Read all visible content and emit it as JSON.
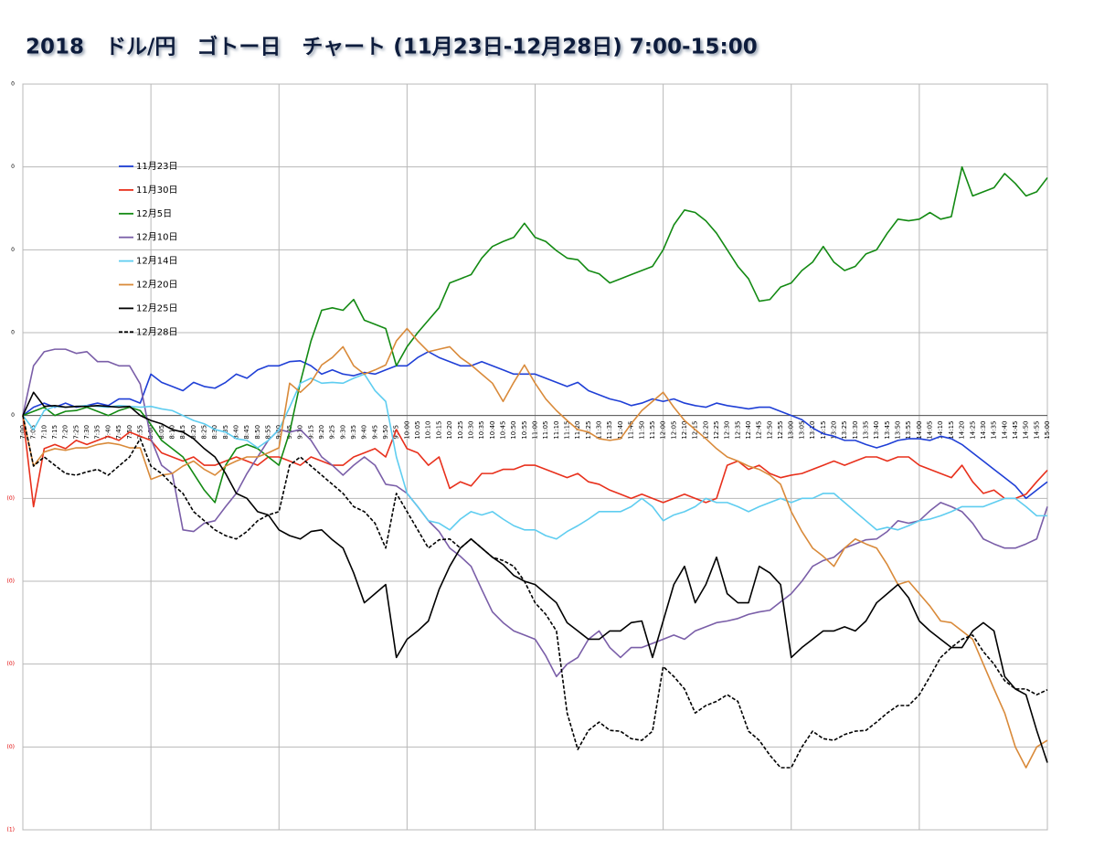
{
  "chart_data": {
    "type": "line",
    "title": "2018　ドル/円　ゴトー日　チャート (11月23日-12月28日) 7:00-15:00",
    "categories": [
      "7:00",
      "7:05",
      "7:10",
      "7:15",
      "7:20",
      "7:25",
      "7:30",
      "7:35",
      "7:40",
      "7:45",
      "7:50",
      "7:55",
      "8:00",
      "8:05",
      "8:10",
      "8:15",
      "8:20",
      "8:25",
      "8:30",
      "8:35",
      "8:40",
      "8:45",
      "8:50",
      "8:55",
      "9:00",
      "9:05",
      "9:10",
      "9:15",
      "9:20",
      "9:25",
      "9:30",
      "9:35",
      "9:40",
      "9:45",
      "9:50",
      "9:55",
      "10:00",
      "10:05",
      "10:10",
      "10:15",
      "10:20",
      "10:25",
      "10:30",
      "10:35",
      "10:40",
      "10:45",
      "10:50",
      "10:55",
      "11:00",
      "11:05",
      "11:10",
      "11:15",
      "11:20",
      "11:25",
      "11:30",
      "11:35",
      "11:40",
      "11:45",
      "11:50",
      "11:55",
      "12:00",
      "12:05",
      "12:10",
      "12:15",
      "12:20",
      "12:25",
      "12:30",
      "12:35",
      "12:40",
      "12:45",
      "12:50",
      "12:55",
      "13:00",
      "13:05",
      "13:10",
      "13:15",
      "13:20",
      "13:25",
      "13:30",
      "13:35",
      "13:40",
      "13:45",
      "13:50",
      "13:55",
      "14:00",
      "14:05",
      "14:10",
      "14:15",
      "14:20",
      "14:25",
      "14:30",
      "14:35",
      "14:40",
      "14:45",
      "14:50",
      "14:55",
      "15:00"
    ],
    "series": [
      {
        "name": "11月23日",
        "color": "#1f3fd6",
        "dash": false,
        "values": [
          0,
          0.01,
          0.015,
          0.01,
          0.015,
          0.01,
          0.012,
          0.015,
          0.012,
          0.02,
          0.02,
          0.015,
          0.05,
          0.04,
          0.035,
          0.03,
          0.04,
          0.035,
          0.033,
          0.04,
          0.05,
          0.045,
          0.055,
          0.06,
          0.06,
          0.065,
          0.066,
          0.06,
          0.05,
          0.055,
          0.05,
          0.048,
          0.052,
          0.05,
          0.055,
          0.06,
          0.06,
          0.07,
          0.077,
          0.07,
          0.065,
          0.06,
          0.06,
          0.065,
          0.06,
          0.055,
          0.05,
          0.05,
          0.05,
          0.045,
          0.04,
          0.035,
          0.04,
          0.03,
          0.025,
          0.02,
          0.017,
          0.012,
          0.015,
          0.02,
          0.017,
          0.02,
          0.015,
          0.012,
          0.01,
          0.015,
          0.012,
          0.01,
          0.008,
          0.01,
          0.01,
          0.005,
          0,
          -0.005,
          -0.015,
          -0.022,
          -0.025,
          -0.03,
          -0.03,
          -0.035,
          -0.039,
          -0.035,
          -0.03,
          -0.028,
          -0.028,
          -0.03,
          -0.025,
          -0.028,
          -0.035,
          -0.045,
          -0.055,
          -0.065,
          -0.075,
          -0.085,
          -0.1,
          -0.09,
          -0.08
        ]
      },
      {
        "name": "11月30日",
        "color": "#e8301c",
        "dash": false,
        "values": [
          0,
          -0.11,
          -0.04,
          -0.035,
          -0.04,
          -0.03,
          -0.035,
          -0.03,
          -0.025,
          -0.03,
          -0.02,
          -0.025,
          -0.03,
          -0.045,
          -0.05,
          -0.055,
          -0.05,
          -0.06,
          -0.06,
          -0.055,
          -0.05,
          -0.055,
          -0.06,
          -0.05,
          -0.05,
          -0.055,
          -0.06,
          -0.05,
          -0.055,
          -0.06,
          -0.06,
          -0.05,
          -0.045,
          -0.04,
          -0.05,
          -0.017,
          -0.04,
          -0.045,
          -0.06,
          -0.05,
          -0.088,
          -0.08,
          -0.085,
          -0.07,
          -0.07,
          -0.065,
          -0.065,
          -0.06,
          -0.06,
          -0.065,
          -0.07,
          -0.075,
          -0.07,
          -0.08,
          -0.083,
          -0.09,
          -0.095,
          -0.1,
          -0.095,
          -0.1,
          -0.105,
          -0.1,
          -0.095,
          -0.1,
          -0.105,
          -0.1,
          -0.06,
          -0.055,
          -0.065,
          -0.06,
          -0.07,
          -0.075,
          -0.072,
          -0.07,
          -0.065,
          -0.06,
          -0.055,
          -0.06,
          -0.055,
          -0.05,
          -0.05,
          -0.055,
          -0.05,
          -0.05,
          -0.06,
          -0.065,
          -0.07,
          -0.075,
          -0.06,
          -0.08,
          -0.094,
          -0.09,
          -0.1,
          -0.1,
          -0.095,
          -0.08,
          -0.066
        ]
      },
      {
        "name": "12月5日",
        "color": "#138a13",
        "dash": false,
        "values": [
          0,
          0.005,
          0.01,
          0,
          0.005,
          0.006,
          0.01,
          0.005,
          0,
          0.006,
          0.01,
          0.006,
          -0.011,
          -0.03,
          -0.04,
          -0.05,
          -0.07,
          -0.09,
          -0.105,
          -0.06,
          -0.04,
          -0.035,
          -0.04,
          -0.05,
          -0.06,
          -0.02,
          0.04,
          0.09,
          0.127,
          0.13,
          0.127,
          0.14,
          0.115,
          0.11,
          0.105,
          0.06,
          0.083,
          0.1,
          0.115,
          0.13,
          0.16,
          0.165,
          0.17,
          0.19,
          0.204,
          0.21,
          0.215,
          0.232,
          0.215,
          0.21,
          0.199,
          0.19,
          0.188,
          0.175,
          0.171,
          0.16,
          0.165,
          0.17,
          0.175,
          0.18,
          0.2,
          0.23,
          0.248,
          0.245,
          0.235,
          0.22,
          0.2,
          0.18,
          0.165,
          0.138,
          0.14,
          0.155,
          0.16,
          0.175,
          0.185,
          0.204,
          0.185,
          0.175,
          0.18,
          0.195,
          0.2,
          0.22,
          0.237,
          0.235,
          0.237,
          0.245,
          0.237,
          0.24,
          0.3,
          0.265,
          0.27,
          0.275,
          0.292,
          0.28,
          0.265,
          0.27,
          0.287
        ]
      },
      {
        "name": "12月10日",
        "color": "#7a5ea8",
        "dash": false,
        "values": [
          0,
          0.06,
          0.077,
          0.08,
          0.08,
          0.075,
          0.077,
          0.065,
          0.065,
          0.06,
          0.06,
          0.038,
          -0.028,
          -0.06,
          -0.07,
          -0.138,
          -0.14,
          -0.13,
          -0.127,
          -0.11,
          -0.094,
          -0.07,
          -0.05,
          -0.03,
          -0.017,
          -0.02,
          -0.017,
          -0.03,
          -0.05,
          -0.06,
          -0.072,
          -0.06,
          -0.05,
          -0.06,
          -0.083,
          -0.085,
          -0.094,
          -0.11,
          -0.127,
          -0.14,
          -0.16,
          -0.17,
          -0.182,
          -0.21,
          -0.237,
          -0.25,
          -0.26,
          -0.265,
          -0.27,
          -0.29,
          -0.315,
          -0.3,
          -0.292,
          -0.27,
          -0.26,
          -0.28,
          -0.292,
          -0.28,
          -0.28,
          -0.275,
          -0.27,
          -0.265,
          -0.27,
          -0.26,
          -0.255,
          -0.25,
          -0.248,
          -0.245,
          -0.24,
          -0.237,
          -0.235,
          -0.225,
          -0.215,
          -0.2,
          -0.182,
          -0.175,
          -0.171,
          -0.16,
          -0.155,
          -0.15,
          -0.149,
          -0.14,
          -0.127,
          -0.13,
          -0.127,
          -0.115,
          -0.105,
          -0.11,
          -0.116,
          -0.13,
          -0.149,
          -0.155,
          -0.16,
          -0.16,
          -0.155,
          -0.149,
          -0.11
        ]
      },
      {
        "name": "12月14日",
        "color": "#5fcdf0",
        "dash": false,
        "values": [
          0,
          -0.017,
          0.006,
          0.011,
          0.01,
          0.011,
          0.012,
          0.011,
          0.01,
          0.012,
          0.011,
          0.01,
          0.011,
          0.008,
          0.006,
          0,
          -0.006,
          -0.01,
          -0.017,
          -0.02,
          -0.028,
          -0.03,
          -0.039,
          -0.03,
          -0.017,
          0.01,
          0.039,
          0.045,
          0.039,
          0.04,
          0.039,
          0.045,
          0.05,
          0.03,
          0.017,
          -0.05,
          -0.094,
          -0.11,
          -0.127,
          -0.13,
          -0.138,
          -0.125,
          -0.116,
          -0.12,
          -0.116,
          -0.125,
          -0.133,
          -0.138,
          -0.138,
          -0.145,
          -0.149,
          -0.14,
          -0.133,
          -0.125,
          -0.116,
          -0.116,
          -0.116,
          -0.11,
          -0.1,
          -0.11,
          -0.127,
          -0.12,
          -0.116,
          -0.11,
          -0.1,
          -0.105,
          -0.105,
          -0.11,
          -0.116,
          -0.11,
          -0.105,
          -0.1,
          -0.105,
          -0.1,
          -0.1,
          -0.094,
          -0.094,
          -0.105,
          -0.116,
          -0.127,
          -0.138,
          -0.135,
          -0.138,
          -0.133,
          -0.127,
          -0.125,
          -0.121,
          -0.116,
          -0.11,
          -0.11,
          -0.11,
          -0.105,
          -0.1,
          -0.1,
          -0.11,
          -0.121,
          -0.121
        ]
      },
      {
        "name": "12月20日",
        "color": "#d98a3a",
        "dash": false,
        "values": [
          0,
          -0.061,
          -0.044,
          -0.04,
          -0.042,
          -0.039,
          -0.039,
          -0.035,
          -0.033,
          -0.035,
          -0.039,
          -0.039,
          -0.077,
          -0.072,
          -0.07,
          -0.061,
          -0.055,
          -0.065,
          -0.072,
          -0.061,
          -0.055,
          -0.05,
          -0.05,
          -0.045,
          -0.039,
          0.039,
          0.028,
          0.04,
          0.061,
          0.07,
          0.083,
          0.06,
          0.05,
          0.055,
          0.061,
          0.09,
          0.105,
          0.09,
          0.077,
          0.08,
          0.083,
          0.07,
          0.061,
          0.05,
          0.039,
          0.017,
          0.04,
          0.061,
          0.039,
          0.02,
          0.006,
          -0.006,
          -0.017,
          -0.02,
          -0.028,
          -0.03,
          -0.028,
          -0.01,
          0.006,
          0.017,
          0.028,
          0.01,
          -0.006,
          -0.017,
          -0.028,
          -0.04,
          -0.05,
          -0.055,
          -0.061,
          -0.065,
          -0.072,
          -0.083,
          -0.116,
          -0.14,
          -0.16,
          -0.17,
          -0.182,
          -0.16,
          -0.149,
          -0.155,
          -0.16,
          -0.18,
          -0.204,
          -0.2,
          -0.215,
          -0.23,
          -0.248,
          -0.25,
          -0.26,
          -0.27,
          -0.3,
          -0.33,
          -0.359,
          -0.4,
          -0.425,
          -0.4,
          -0.392
        ]
      },
      {
        "name": "12月25日",
        "color": "#000000",
        "dash": false,
        "values": [
          0,
          0.028,
          0.011,
          0.012,
          0.01,
          0.011,
          0.011,
          0.012,
          0.011,
          0.01,
          0.011,
          0,
          -0.006,
          -0.01,
          -0.017,
          -0.02,
          -0.028,
          -0.04,
          -0.05,
          -0.07,
          -0.094,
          -0.1,
          -0.116,
          -0.12,
          -0.138,
          -0.145,
          -0.149,
          -0.14,
          -0.138,
          -0.15,
          -0.16,
          -0.19,
          -0.226,
          -0.215,
          -0.204,
          -0.292,
          -0.27,
          -0.26,
          -0.248,
          -0.21,
          -0.182,
          -0.16,
          -0.149,
          -0.16,
          -0.171,
          -0.18,
          -0.193,
          -0.2,
          -0.204,
          -0.215,
          -0.226,
          -0.25,
          -0.26,
          -0.27,
          -0.27,
          -0.26,
          -0.26,
          -0.25,
          -0.248,
          -0.292,
          -0.248,
          -0.204,
          -0.182,
          -0.226,
          -0.204,
          -0.171,
          -0.215,
          -0.226,
          -0.226,
          -0.182,
          -0.19,
          -0.204,
          -0.292,
          -0.28,
          -0.27,
          -0.26,
          -0.26,
          -0.255,
          -0.26,
          -0.248,
          -0.226,
          -0.215,
          -0.204,
          -0.22,
          -0.248,
          -0.26,
          -0.27,
          -0.28,
          -0.28,
          -0.26,
          -0.25,
          -0.26,
          -0.315,
          -0.33,
          -0.337,
          -0.38,
          -0.419
        ]
      },
      {
        "name": "12月28日",
        "color": "#000000",
        "dash": true,
        "values": [
          0,
          -0.061,
          -0.05,
          -0.06,
          -0.07,
          -0.072,
          -0.068,
          -0.065,
          -0.072,
          -0.061,
          -0.05,
          -0.028,
          -0.061,
          -0.07,
          -0.083,
          -0.094,
          -0.116,
          -0.127,
          -0.138,
          -0.145,
          -0.149,
          -0.14,
          -0.127,
          -0.12,
          -0.116,
          -0.06,
          -0.05,
          -0.061,
          -0.072,
          -0.083,
          -0.094,
          -0.11,
          -0.116,
          -0.13,
          -0.16,
          -0.094,
          -0.116,
          -0.138,
          -0.16,
          -0.15,
          -0.149,
          -0.16,
          -0.149,
          -0.16,
          -0.171,
          -0.175,
          -0.182,
          -0.2,
          -0.226,
          -0.24,
          -0.26,
          -0.359,
          -0.403,
          -0.38,
          -0.37,
          -0.38,
          -0.381,
          -0.39,
          -0.392,
          -0.381,
          -0.303,
          -0.315,
          -0.33,
          -0.359,
          -0.35,
          -0.345,
          -0.337,
          -0.345,
          -0.381,
          -0.392,
          -0.41,
          -0.425,
          -0.425,
          -0.4,
          -0.381,
          -0.39,
          -0.392,
          -0.385,
          -0.381,
          -0.38,
          -0.37,
          -0.359,
          -0.35,
          -0.35,
          -0.337,
          -0.315,
          -0.292,
          -0.28,
          -0.27,
          -0.265,
          -0.285,
          -0.3,
          -0.32,
          -0.33,
          -0.33,
          -0.337,
          -0.331
        ]
      }
    ],
    "ylim": [
      -0.5,
      0.4
    ],
    "yticks": [
      {
        "value": 0.4,
        "label": "0"
      },
      {
        "value": 0.3,
        "label": "0"
      },
      {
        "value": 0.2,
        "label": "0"
      },
      {
        "value": 0.1,
        "label": "0"
      },
      0,
      {
        "value": -0.1,
        "label": "(0)"
      },
      {
        "value": -0.2,
        "label": "(0)"
      },
      {
        "value": -0.3,
        "label": "(0)"
      },
      {
        "value": -0.4,
        "label": "(0)"
      },
      {
        "value": -0.5,
        "label": "(1)"
      }
    ],
    "negative_label_color": "#e00000",
    "grid": true,
    "vertical_grid_every": 12,
    "legend": "upper left"
  }
}
